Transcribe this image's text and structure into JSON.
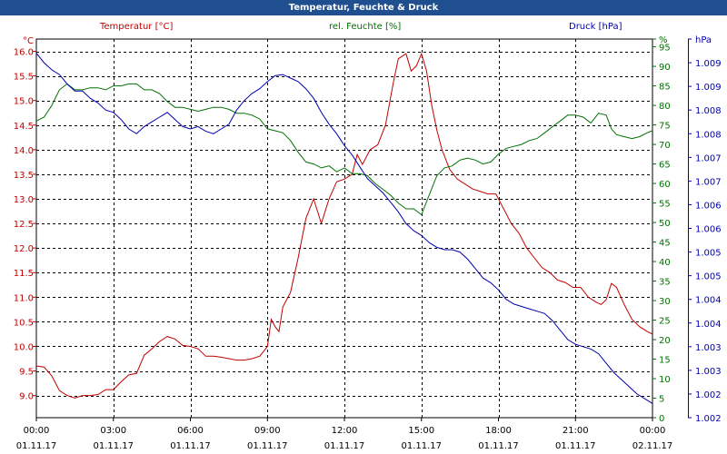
{
  "title": "Temperatur, Feuchte & Druck",
  "colors": {
    "titlebar": "#1f4f8f",
    "temperature": "#c00000",
    "humidity": "#007000",
    "pressure": "#0000b0"
  },
  "chart_data": {
    "type": "line",
    "title": "Temperatur, Feuchte & Druck",
    "x_labels": [
      {
        "time": "00:00",
        "date": "01.11.17"
      },
      {
        "time": "03:00",
        "date": "01.11.17"
      },
      {
        "time": "06:00",
        "date": "01.11.17"
      },
      {
        "time": "09:00",
        "date": "01.11.17"
      },
      {
        "time": "12:00",
        "date": "01.11.17"
      },
      {
        "time": "15:00",
        "date": "01.11.17"
      },
      {
        "time": "18:00",
        "date": "01.11.17"
      },
      {
        "time": "21:00",
        "date": "01.11.17"
      },
      {
        "time": "00:00",
        "date": "02.11.17"
      }
    ],
    "x_range_hours": [
      0,
      24
    ],
    "axes": {
      "temperature": {
        "unit": "°C",
        "range": [
          8.55,
          16.25
        ],
        "ticks": [
          "16.0",
          "15.5",
          "15.0",
          "14.5",
          "14.0",
          "13.5",
          "13.0",
          "12.5",
          "12.0",
          "11.5",
          "11.0",
          "10.5",
          "10.0",
          "9.5",
          "9.0"
        ],
        "tick_values": [
          16.0,
          15.5,
          15.0,
          14.5,
          14.0,
          13.5,
          13.0,
          12.5,
          12.0,
          11.5,
          11.0,
          10.5,
          10.0,
          9.5,
          9.0
        ]
      },
      "humidity": {
        "unit": "%",
        "range": [
          0,
          97
        ],
        "ticks": [
          "%",
          "95",
          "90",
          "85",
          "80",
          "75",
          "70",
          "65",
          "60",
          "55",
          "50",
          "45",
          "40",
          "35",
          "30",
          "25",
          "20",
          "15",
          "10",
          "5",
          "0"
        ],
        "tick_values": [
          97,
          95,
          90,
          85,
          80,
          75,
          70,
          65,
          60,
          55,
          50,
          45,
          40,
          35,
          30,
          25,
          20,
          15,
          10,
          5,
          0
        ]
      },
      "pressure": {
        "unit": "hPa",
        "range": [
          0,
          16
        ],
        "ticks": [
          "hPa",
          "1.009",
          "1.009",
          "1.008",
          "1.008",
          "1.007",
          "1.007",
          "1.006",
          "1.006",
          "1.005",
          "1.005",
          "1.004",
          "1.004",
          "1.003",
          "1.003",
          "1.002",
          "1.002"
        ],
        "tick_values": [
          16,
          15,
          14,
          13,
          12,
          11,
          10,
          9,
          8,
          7,
          6,
          5,
          4,
          3,
          2,
          1,
          0
        ]
      }
    },
    "series": [
      {
        "name": "Temperatur [°C]",
        "axis": "temperature",
        "points": [
          [
            0,
            9.6
          ],
          [
            0.3,
            9.58
          ],
          [
            0.6,
            9.4
          ],
          [
            0.9,
            9.1
          ],
          [
            1.2,
            9.0
          ],
          [
            1.5,
            8.95
          ],
          [
            1.8,
            9.0
          ],
          [
            2.1,
            9.0
          ],
          [
            2.4,
            9.02
          ],
          [
            2.7,
            9.12
          ],
          [
            3.0,
            9.12
          ],
          [
            3.3,
            9.28
          ],
          [
            3.6,
            9.42
          ],
          [
            3.9,
            9.45
          ],
          [
            4.2,
            9.82
          ],
          [
            4.5,
            9.95
          ],
          [
            4.8,
            10.1
          ],
          [
            5.1,
            10.2
          ],
          [
            5.4,
            10.15
          ],
          [
            5.7,
            10.02
          ],
          [
            6.0,
            10.0
          ],
          [
            6.3,
            9.95
          ],
          [
            6.6,
            9.8
          ],
          [
            6.9,
            9.8
          ],
          [
            7.2,
            9.78
          ],
          [
            7.5,
            9.75
          ],
          [
            7.8,
            9.72
          ],
          [
            8.1,
            9.72
          ],
          [
            8.4,
            9.75
          ],
          [
            8.7,
            9.8
          ],
          [
            9.0,
            10.0
          ],
          [
            9.15,
            10.55
          ],
          [
            9.3,
            10.4
          ],
          [
            9.45,
            10.3
          ],
          [
            9.6,
            10.8
          ],
          [
            9.9,
            11.1
          ],
          [
            10.2,
            11.8
          ],
          [
            10.5,
            12.6
          ],
          [
            10.8,
            13.0
          ],
          [
            11.1,
            12.5
          ],
          [
            11.4,
            13.0
          ],
          [
            11.7,
            13.35
          ],
          [
            12.0,
            13.4
          ],
          [
            12.3,
            13.5
          ],
          [
            12.5,
            13.9
          ],
          [
            12.7,
            13.7
          ],
          [
            13.0,
            14.0
          ],
          [
            13.3,
            14.1
          ],
          [
            13.6,
            14.5
          ],
          [
            13.9,
            15.35
          ],
          [
            14.1,
            15.85
          ],
          [
            14.4,
            15.95
          ],
          [
            14.6,
            15.6
          ],
          [
            14.8,
            15.7
          ],
          [
            15.0,
            15.95
          ],
          [
            15.2,
            15.6
          ],
          [
            15.4,
            14.9
          ],
          [
            15.6,
            14.4
          ],
          [
            15.8,
            14.0
          ],
          [
            16.1,
            13.6
          ],
          [
            16.4,
            13.4
          ],
          [
            16.7,
            13.3
          ],
          [
            17.0,
            13.2
          ],
          [
            17.3,
            13.15
          ],
          [
            17.6,
            13.1
          ],
          [
            17.9,
            13.1
          ],
          [
            18.2,
            12.8
          ],
          [
            18.5,
            12.5
          ],
          [
            18.8,
            12.3
          ],
          [
            19.1,
            12.0
          ],
          [
            19.4,
            11.8
          ],
          [
            19.7,
            11.6
          ],
          [
            20.0,
            11.5
          ],
          [
            20.3,
            11.35
          ],
          [
            20.6,
            11.3
          ],
          [
            20.9,
            11.2
          ],
          [
            21.2,
            11.2
          ],
          [
            21.5,
            11.0
          ],
          [
            21.8,
            10.9
          ],
          [
            22.0,
            10.85
          ],
          [
            22.2,
            10.95
          ],
          [
            22.4,
            11.28
          ],
          [
            22.6,
            11.2
          ],
          [
            22.9,
            10.85
          ],
          [
            23.2,
            10.55
          ],
          [
            23.5,
            10.4
          ],
          [
            23.8,
            10.3
          ],
          [
            24.0,
            10.25
          ]
        ]
      },
      {
        "name": "rel. Feuchte [%]",
        "axis": "humidity",
        "points": [
          [
            0,
            76
          ],
          [
            0.3,
            77
          ],
          [
            0.6,
            80
          ],
          [
            0.9,
            84
          ],
          [
            1.2,
            85.5
          ],
          [
            1.5,
            84
          ],
          [
            1.8,
            84
          ],
          [
            2.1,
            84.5
          ],
          [
            2.4,
            84.5
          ],
          [
            2.7,
            84
          ],
          [
            3.0,
            85
          ],
          [
            3.3,
            85
          ],
          [
            3.6,
            85.5
          ],
          [
            3.9,
            85.5
          ],
          [
            4.2,
            84
          ],
          [
            4.5,
            84
          ],
          [
            4.8,
            83
          ],
          [
            5.1,
            81
          ],
          [
            5.4,
            79.5
          ],
          [
            5.7,
            79.5
          ],
          [
            6.0,
            79
          ],
          [
            6.3,
            78.5
          ],
          [
            6.6,
            79
          ],
          [
            6.9,
            79.5
          ],
          [
            7.2,
            79.5
          ],
          [
            7.5,
            79
          ],
          [
            7.8,
            78
          ],
          [
            8.1,
            78
          ],
          [
            8.4,
            77.5
          ],
          [
            8.7,
            76.5
          ],
          [
            9.0,
            74
          ],
          [
            9.3,
            73.5
          ],
          [
            9.6,
            73
          ],
          [
            9.9,
            71
          ],
          [
            10.2,
            68
          ],
          [
            10.5,
            65.5
          ],
          [
            10.8,
            65
          ],
          [
            11.1,
            64
          ],
          [
            11.4,
            64.5
          ],
          [
            11.7,
            63
          ],
          [
            12.0,
            64
          ],
          [
            12.3,
            62.5
          ],
          [
            12.6,
            62.5
          ],
          [
            12.9,
            62
          ],
          [
            13.2,
            60
          ],
          [
            13.5,
            58.5
          ],
          [
            13.8,
            57
          ],
          [
            14.1,
            55
          ],
          [
            14.4,
            53.5
          ],
          [
            14.7,
            53.5
          ],
          [
            15.0,
            52
          ],
          [
            15.3,
            57
          ],
          [
            15.6,
            62
          ],
          [
            15.9,
            64
          ],
          [
            16.2,
            64.5
          ],
          [
            16.5,
            66
          ],
          [
            16.8,
            66.5
          ],
          [
            17.1,
            66
          ],
          [
            17.4,
            65
          ],
          [
            17.7,
            65.5
          ],
          [
            18.0,
            67.5
          ],
          [
            18.3,
            69
          ],
          [
            18.6,
            69.5
          ],
          [
            18.9,
            70
          ],
          [
            19.2,
            71
          ],
          [
            19.5,
            71.5
          ],
          [
            19.8,
            73
          ],
          [
            20.1,
            74.5
          ],
          [
            20.4,
            76
          ],
          [
            20.7,
            77.5
          ],
          [
            21.0,
            77.5
          ],
          [
            21.3,
            77
          ],
          [
            21.6,
            75.5
          ],
          [
            21.9,
            78
          ],
          [
            22.2,
            77.5
          ],
          [
            22.4,
            74
          ],
          [
            22.6,
            72.5
          ],
          [
            22.9,
            72
          ],
          [
            23.2,
            71.5
          ],
          [
            23.5,
            72
          ],
          [
            23.8,
            73
          ],
          [
            24.0,
            73.5
          ]
        ]
      },
      {
        "name": "Druck [hPa]",
        "axis": "pressure",
        "points": [
          [
            0,
            15.4
          ],
          [
            0.3,
            15
          ],
          [
            0.6,
            14.7
          ],
          [
            0.9,
            14.5
          ],
          [
            1.2,
            14.1
          ],
          [
            1.5,
            13.8
          ],
          [
            1.8,
            13.8
          ],
          [
            2.1,
            13.5
          ],
          [
            2.4,
            13.3
          ],
          [
            2.7,
            13.0
          ],
          [
            3.0,
            12.9
          ],
          [
            3.3,
            12.6
          ],
          [
            3.6,
            12.2
          ],
          [
            3.9,
            12.0
          ],
          [
            4.2,
            12.3
          ],
          [
            4.5,
            12.5
          ],
          [
            4.8,
            12.7
          ],
          [
            5.1,
            12.9
          ],
          [
            5.4,
            12.6
          ],
          [
            5.7,
            12.3
          ],
          [
            6.0,
            12.2
          ],
          [
            6.3,
            12.3
          ],
          [
            6.6,
            12.1
          ],
          [
            6.9,
            12.0
          ],
          [
            7.2,
            12.2
          ],
          [
            7.5,
            12.4
          ],
          [
            7.8,
            13.0
          ],
          [
            8.1,
            13.4
          ],
          [
            8.4,
            13.7
          ],
          [
            8.7,
            13.9
          ],
          [
            9.0,
            14.2
          ],
          [
            9.3,
            14.45
          ],
          [
            9.6,
            14.5
          ],
          [
            9.9,
            14.35
          ],
          [
            10.2,
            14.2
          ],
          [
            10.5,
            13.9
          ],
          [
            10.8,
            13.5
          ],
          [
            11.1,
            12.9
          ],
          [
            11.4,
            12.4
          ],
          [
            11.7,
            12.0
          ],
          [
            12.0,
            11.5
          ],
          [
            12.3,
            11.1
          ],
          [
            12.6,
            10.6
          ],
          [
            12.9,
            10.1
          ],
          [
            13.2,
            9.8
          ],
          [
            13.5,
            9.5
          ],
          [
            13.8,
            9.1
          ],
          [
            14.1,
            8.7
          ],
          [
            14.4,
            8.2
          ],
          [
            14.7,
            7.9
          ],
          [
            15.0,
            7.7
          ],
          [
            15.3,
            7.4
          ],
          [
            15.6,
            7.2
          ],
          [
            15.9,
            7.1
          ],
          [
            16.2,
            7.1
          ],
          [
            16.5,
            7.0
          ],
          [
            16.8,
            6.7
          ],
          [
            17.1,
            6.3
          ],
          [
            17.4,
            5.9
          ],
          [
            17.7,
            5.7
          ],
          [
            18.0,
            5.4
          ],
          [
            18.3,
            5.0
          ],
          [
            18.6,
            4.8
          ],
          [
            18.9,
            4.7
          ],
          [
            19.2,
            4.6
          ],
          [
            19.5,
            4.5
          ],
          [
            19.8,
            4.4
          ],
          [
            20.1,
            4.1
          ],
          [
            20.4,
            3.7
          ],
          [
            20.7,
            3.3
          ],
          [
            21.0,
            3.1
          ],
          [
            21.3,
            3.0
          ],
          [
            21.6,
            2.9
          ],
          [
            21.9,
            2.7
          ],
          [
            22.2,
            2.3
          ],
          [
            22.5,
            1.9
          ],
          [
            22.8,
            1.6
          ],
          [
            23.1,
            1.3
          ],
          [
            23.4,
            1.0
          ],
          [
            23.7,
            0.8
          ],
          [
            24.0,
            0.6
          ]
        ]
      }
    ]
  }
}
